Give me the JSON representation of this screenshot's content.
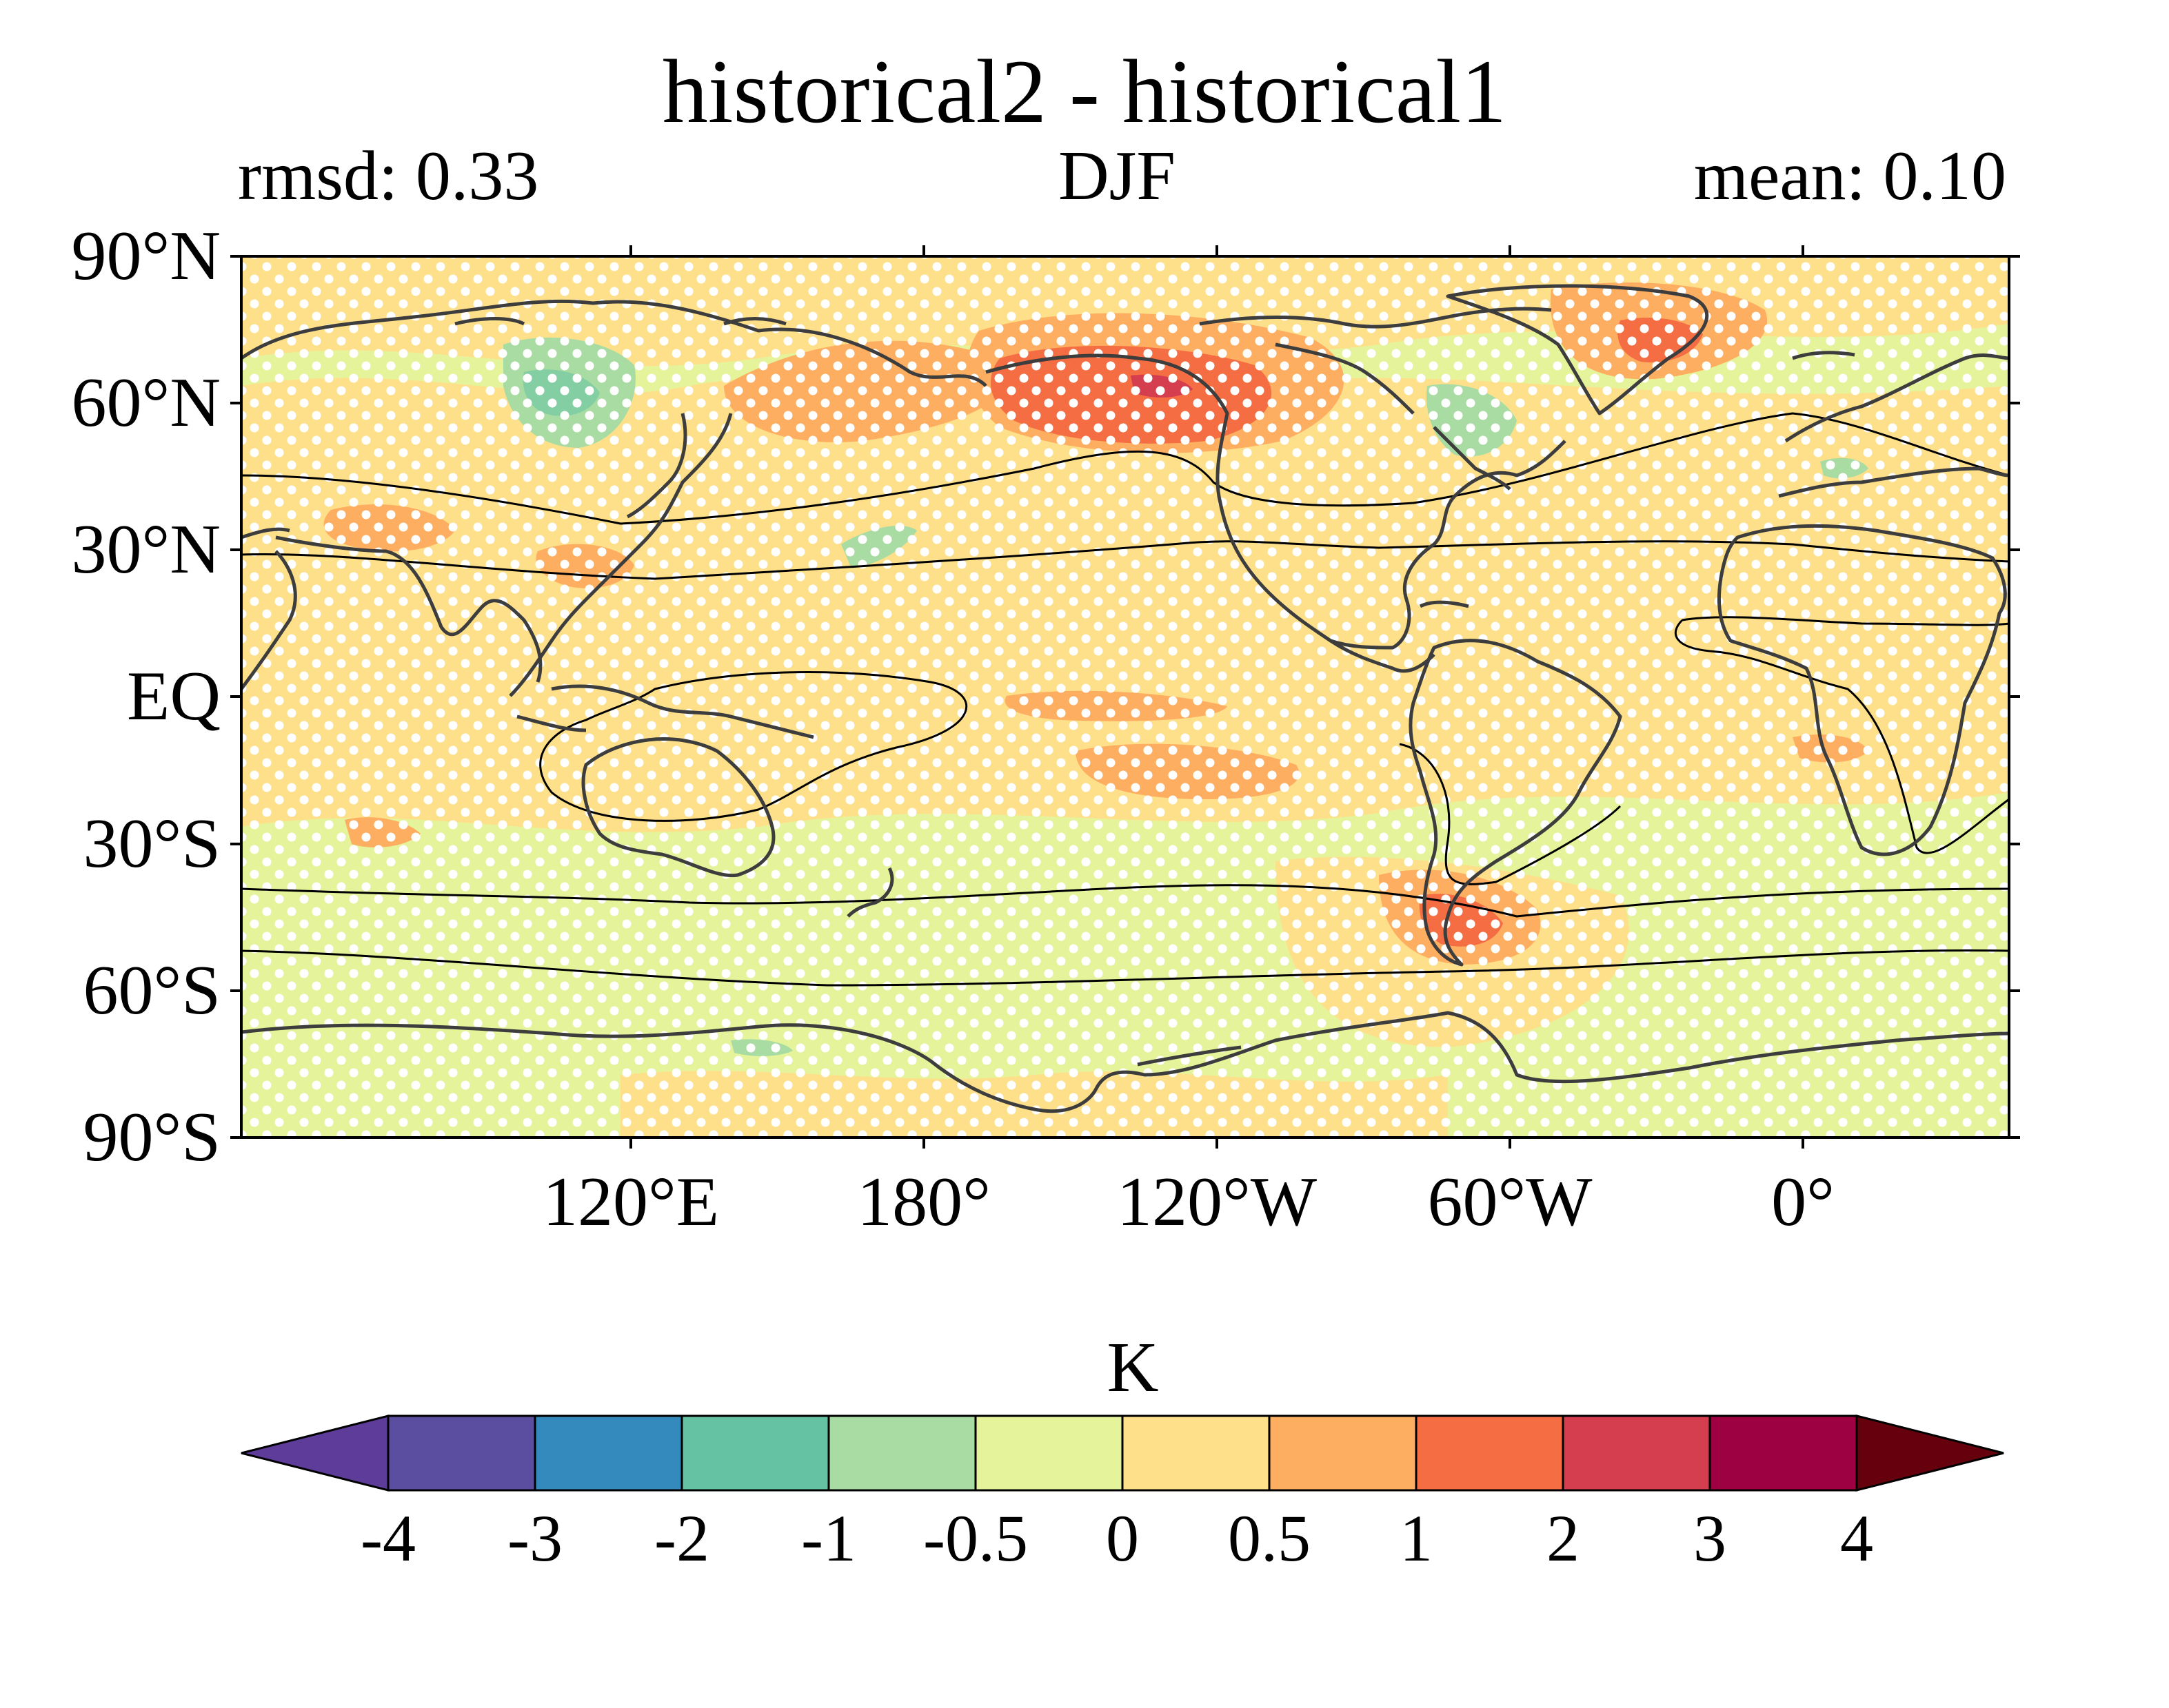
{
  "title": "historical2 - historical1",
  "subtitle": {
    "left": "rmsd: 0.33",
    "center": "DJF",
    "right": "mean: 0.10"
  },
  "map": {
    "projection": "PlateCarree (central longitude ~150°W)",
    "y_ticks": [
      "90°N",
      "60°N",
      "30°N",
      "EQ",
      "30°S",
      "60°S",
      "90°S"
    ],
    "x_ticks": [
      "120°E",
      "180°",
      "120°W",
      "60°W",
      "0°"
    ],
    "stippling": "white dots (significance)",
    "overlays": [
      "coastlines (dark grey)",
      "black contour lines"
    ]
  },
  "colorbar": {
    "unit": "K",
    "tick_labels": [
      "-4",
      "-3",
      "-2",
      "-1",
      "-0.5",
      "0",
      "0.5",
      "1",
      "2",
      "3",
      "4"
    ],
    "colors": [
      "#5e3c99",
      "#5b4da0",
      "#3489bd",
      "#65c3a4",
      "#a9dca3",
      "#e5f49a",
      "#fee08b",
      "#fdae61",
      "#f46d43",
      "#d53e4f",
      "#9e0142",
      "#67000d"
    ],
    "extend": "both"
  },
  "chart_data": {
    "type": "heatmap",
    "title": "historical2 - historical1",
    "season": "DJF",
    "rmsd": 0.33,
    "mean": 0.1,
    "unit": "K",
    "levels": [
      -4,
      -3,
      -2,
      -1,
      -0.5,
      0,
      0.5,
      1,
      2,
      3,
      4
    ],
    "lat_range": [
      -90,
      90
    ],
    "features": [
      {
        "region": "Alaska / NW Canada",
        "value_range": [
          1,
          2
        ]
      },
      {
        "region": "Greenland",
        "value_range": [
          1,
          2
        ]
      },
      {
        "region": "Southern South America",
        "value_range": [
          1,
          2
        ]
      },
      {
        "region": "Central Siberia",
        "value_range": [
          -1,
          -0.5
        ]
      },
      {
        "region": "Hudson Bay region",
        "value_range": [
          -1,
          -0.5
        ]
      },
      {
        "region": "Tropical Pacific",
        "value_range": [
          0.5,
          1
        ]
      },
      {
        "region": "Southern Ocean",
        "value_range": [
          0,
          0.5
        ]
      }
    ]
  }
}
